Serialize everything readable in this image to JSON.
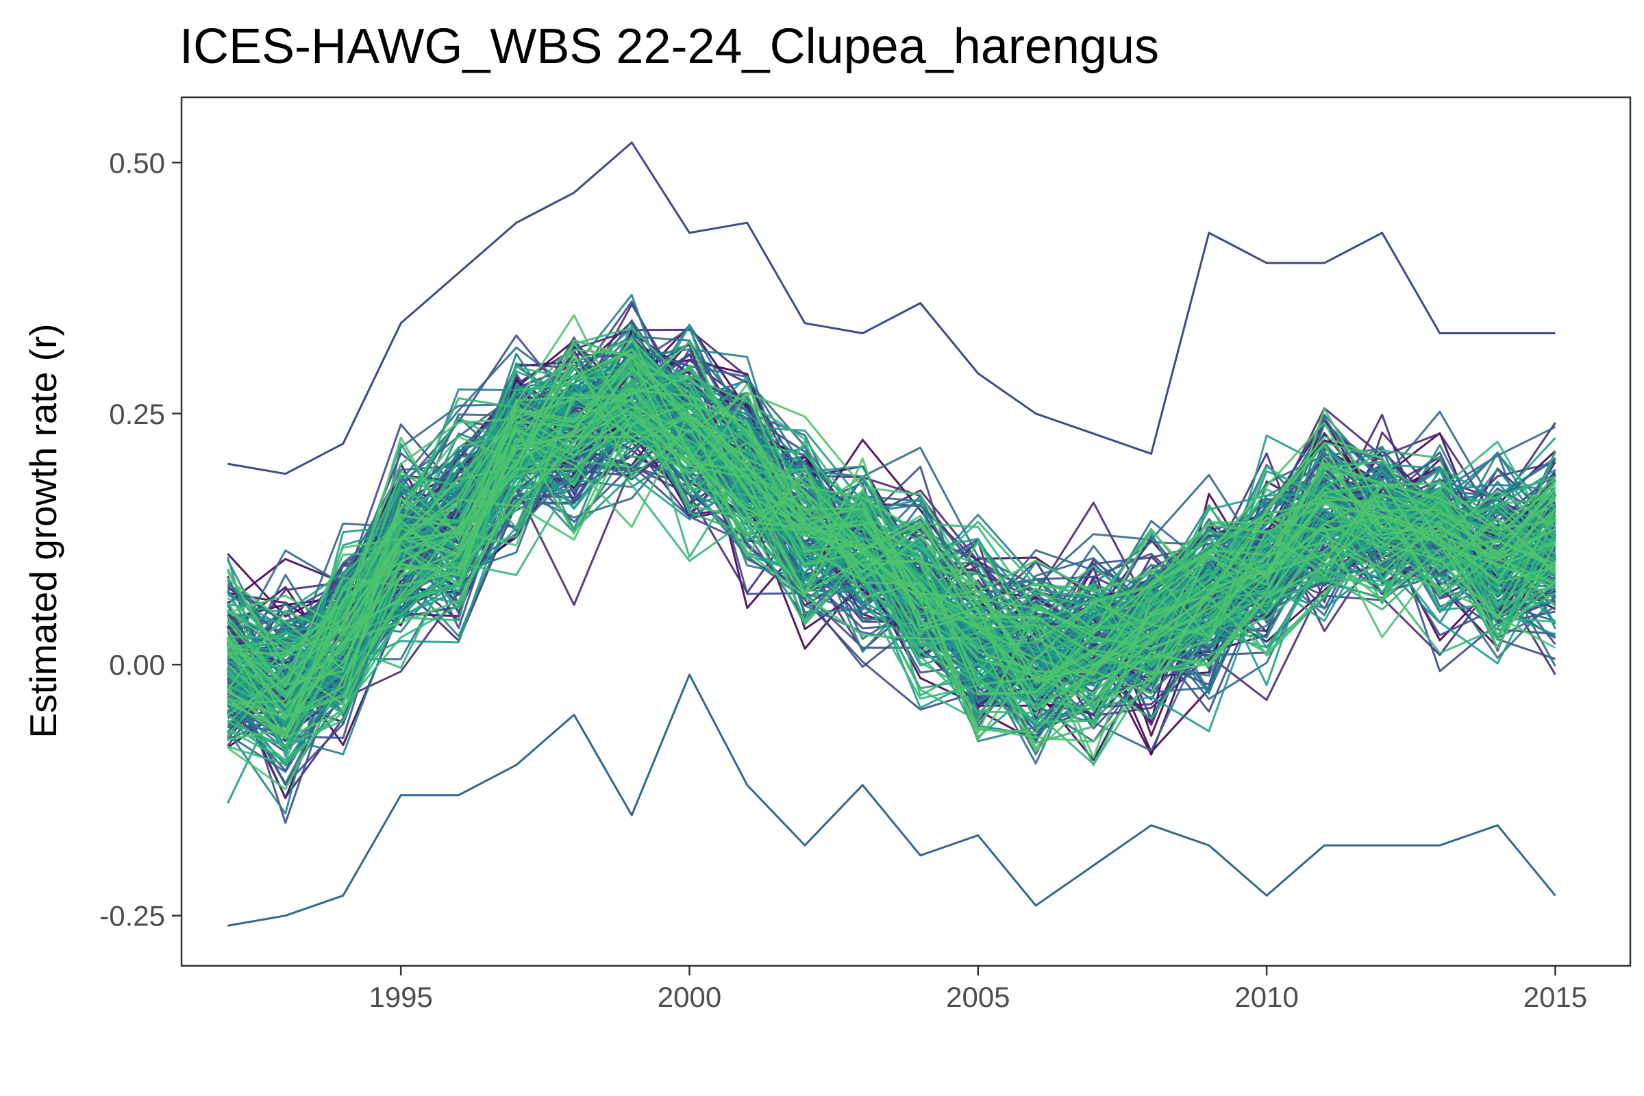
{
  "chart_data": {
    "type": "line",
    "title": "ICES-HAWG_WBS 22-24_Clupea_harengus",
    "xlabel": "",
    "ylabel": "Estimated growth rate (r)",
    "xlim": [
      1991.2,
      2016.3
    ],
    "ylim": [
      -0.3,
      0.565
    ],
    "x_ticks": [
      1995,
      2000,
      2005,
      2010,
      2015
    ],
    "x_tick_labels": [
      "1995",
      "2000",
      "2005",
      "2010",
      "2015"
    ],
    "y_ticks": [
      -0.25,
      0.0,
      0.25,
      0.5
    ],
    "y_tick_labels": [
      "-0.25",
      "0.00",
      "0.25",
      "0.50"
    ],
    "grid": false,
    "legend": "none",
    "x": [
      1992,
      1993,
      1994,
      1995,
      1996,
      1997,
      1998,
      1999,
      2000,
      2001,
      2002,
      2003,
      2004,
      2005,
      2006,
      2007,
      2008,
      2009,
      2010,
      2011,
      2012,
      2013,
      2014,
      2015
    ],
    "mean_trajectory": [
      0.0,
      -0.02,
      0.03,
      0.12,
      0.14,
      0.22,
      0.24,
      0.27,
      0.24,
      0.2,
      0.14,
      0.12,
      0.08,
      0.03,
      0.01,
      0.02,
      0.04,
      0.07,
      0.1,
      0.15,
      0.14,
      0.13,
      0.11,
      0.12
    ],
    "upper_envelope": [
      0.2,
      0.19,
      0.22,
      0.34,
      0.39,
      0.44,
      0.47,
      0.52,
      0.43,
      0.44,
      0.34,
      0.33,
      0.36,
      0.29,
      0.25,
      0.23,
      0.21,
      0.43,
      0.4,
      0.4,
      0.43,
      0.33,
      0.33,
      0.33
    ],
    "lower_envelope": [
      -0.26,
      -0.25,
      -0.23,
      -0.13,
      -0.13,
      -0.1,
      -0.05,
      -0.15,
      -0.01,
      -0.12,
      -0.18,
      -0.12,
      -0.19,
      -0.17,
      -0.24,
      -0.2,
      -0.16,
      -0.18,
      -0.23,
      -0.18,
      -0.18,
      -0.18,
      -0.16,
      -0.23
    ],
    "series_count": 200,
    "palette": [
      "#440154",
      "#482878",
      "#3e4a89",
      "#31688e",
      "#26828e",
      "#1f9e89",
      "#35b779",
      "#4ec36b"
    ],
    "axis_color": "#333333",
    "tick_text_color": "#4d4d4d"
  }
}
